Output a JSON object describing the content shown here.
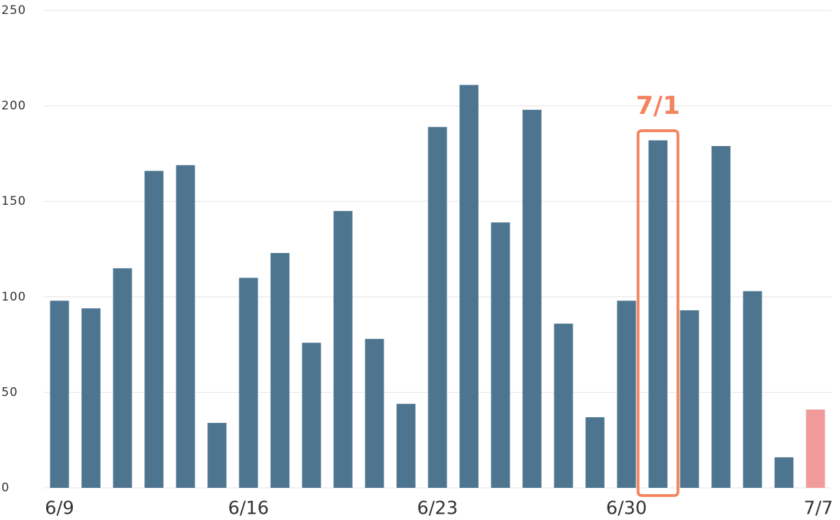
{
  "chart_data": {
    "type": "bar",
    "categories": [
      "6/9",
      null,
      null,
      null,
      null,
      null,
      "6/16",
      null,
      null,
      null,
      null,
      null,
      "6/23",
      null,
      null,
      null,
      null,
      null,
      "6/30",
      null,
      null,
      null,
      null,
      null,
      "7/7"
    ],
    "values": [
      98,
      94,
      115,
      166,
      169,
      34,
      110,
      123,
      76,
      145,
      78,
      44,
      189,
      211,
      139,
      198,
      86,
      37,
      98,
      182,
      93,
      179,
      103,
      16,
      41
    ],
    "colors": [
      "#4e7590",
      "#4e7590",
      "#4e7590",
      "#4e7590",
      "#4e7590",
      "#4e7590",
      "#4e7590",
      "#4e7590",
      "#4e7590",
      "#4e7590",
      "#4e7590",
      "#4e7590",
      "#4e7590",
      "#4e7590",
      "#4e7590",
      "#4e7590",
      "#4e7590",
      "#4e7590",
      "#4e7590",
      "#4e7590",
      "#4e7590",
      "#4e7590",
      "#4e7590",
      "#4e7590",
      "#f19a9b"
    ],
    "ylim": [
      0,
      250
    ],
    "yticks": [
      0,
      50,
      100,
      150,
      200,
      250
    ],
    "grid": true,
    "annotation": {
      "text": "7/1",
      "index": 19,
      "color": "#f4845f"
    }
  }
}
